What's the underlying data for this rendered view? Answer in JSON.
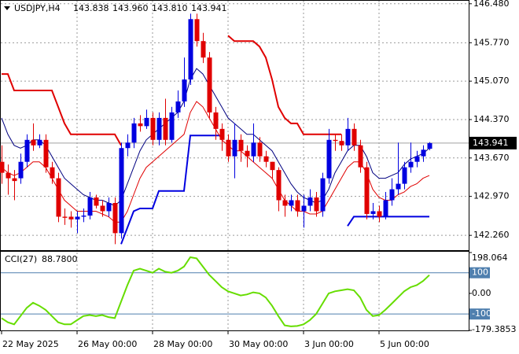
{
  "chart_data": {
    "type": "candlestick",
    "title": "USDJPY,H4",
    "title_values": [
      {
        "value": 143.838,
        "label": "143.838"
      },
      {
        "value": 143.96,
        "label": "143.960"
      },
      {
        "value": 143.81,
        "label": "143.810"
      },
      {
        "value": 143.941,
        "label": "143.941"
      }
    ],
    "up_color": "#0000e0",
    "down_color": "#e00000",
    "open": [
      143.6,
      143.4,
      143.3,
      143.3,
      143.6,
      144.0,
      143.9,
      144.0,
      143.5,
      143.3,
      142.6,
      142.6,
      142.55,
      142.6,
      142.62,
      142.95,
      142.8,
      142.7,
      142.85,
      142.3,
      143.85,
      143.95,
      144.3,
      144.25,
      144.4,
      144.0,
      144.4,
      144.0,
      144.5,
      144.7,
      145.1,
      146.2,
      145.8,
      145.5,
      144.5,
      144.2,
      144.0,
      143.7,
      144.0,
      143.8,
      143.7,
      143.95,
      143.7,
      143.6,
      143.45,
      142.9,
      142.8,
      142.9,
      142.7,
      142.8,
      142.95,
      142.7,
      143.3,
      144.0,
      143.98,
      143.9,
      144.2,
      143.9,
      143.5,
      142.65,
      142.7,
      142.6,
      142.9,
      143.1,
      143.2,
      143.5,
      143.6,
      143.7,
      143.838
    ],
    "high": [
      143.9,
      143.55,
      143.45,
      143.75,
      144.1,
      144.3,
      144.1,
      144.1,
      143.6,
      143.4,
      142.75,
      142.7,
      142.7,
      142.75,
      143.05,
      143.0,
      142.9,
      142.95,
      142.95,
      143.95,
      144.1,
      144.4,
      144.45,
      144.55,
      144.5,
      144.5,
      144.75,
      144.6,
      144.9,
      145.5,
      146.3,
      146.3,
      145.95,
      145.6,
      144.6,
      144.3,
      144.1,
      144.3,
      144.1,
      143.9,
      144.3,
      144.05,
      143.8,
      143.6,
      143.5,
      143.0,
      143.0,
      143.0,
      143.0,
      143.1,
      143.05,
      143.4,
      144.2,
      144.1,
      144.1,
      144.4,
      144.3,
      144.0,
      143.6,
      142.85,
      142.8,
      143.05,
      143.3,
      143.95,
      143.6,
      143.95,
      143.8,
      143.9,
      143.96
    ],
    "low": [
      143.2,
      143.0,
      142.9,
      143.2,
      143.5,
      143.8,
      143.85,
      143.4,
      143.2,
      142.5,
      142.45,
      142.4,
      142.3,
      142.5,
      142.55,
      142.75,
      142.6,
      142.6,
      142.1,
      142.2,
      143.7,
      143.85,
      144.15,
      144.2,
      143.9,
      143.9,
      143.9,
      143.95,
      144.4,
      144.6,
      145.0,
      145.7,
      145.4,
      144.4,
      144.0,
      143.8,
      143.6,
      143.3,
      143.6,
      143.5,
      143.6,
      143.6,
      143.5,
      143.3,
      142.7,
      142.6,
      142.7,
      142.6,
      142.4,
      142.7,
      142.6,
      142.6,
      143.2,
      143.8,
      143.8,
      143.8,
      143.8,
      143.4,
      142.55,
      142.55,
      142.5,
      142.55,
      142.8,
      143.0,
      143.1,
      143.4,
      143.5,
      143.6,
      143.81
    ],
    "close": [
      143.4,
      143.3,
      143.25,
      143.6,
      144.0,
      143.9,
      144.0,
      143.5,
      143.3,
      142.6,
      142.58,
      142.55,
      142.6,
      142.62,
      142.95,
      142.8,
      142.7,
      142.85,
      142.3,
      143.85,
      143.95,
      144.3,
      144.25,
      144.4,
      144.0,
      144.4,
      144.0,
      144.5,
      144.7,
      145.1,
      146.2,
      145.8,
      145.5,
      144.5,
      144.2,
      144.0,
      143.7,
      144.0,
      143.8,
      143.7,
      143.95,
      143.7,
      143.6,
      143.45,
      142.9,
      142.8,
      142.9,
      142.7,
      142.8,
      142.95,
      142.7,
      143.3,
      144.0,
      143.98,
      143.9,
      144.2,
      143.9,
      143.5,
      142.65,
      142.7,
      142.6,
      142.9,
      143.1,
      143.2,
      143.5,
      143.6,
      143.7,
      143.82,
      143.941
    ],
    "lines": [
      {
        "color": "#e00000",
        "width": 2,
        "values": [
          145.2,
          145.2,
          144.9,
          144.9,
          144.9,
          144.9,
          144.9,
          144.9,
          144.9,
          144.6,
          144.3,
          144.1,
          144.1,
          144.1,
          144.1,
          144.1,
          144.1,
          144.1,
          144.1,
          143.9,
          null,
          null,
          null,
          null,
          null,
          null,
          null,
          null,
          null,
          null,
          null,
          null,
          null,
          null,
          null,
          null,
          145.9,
          145.8,
          145.8,
          145.8,
          145.8,
          145.7,
          145.5,
          145.1,
          144.6,
          144.4,
          144.3,
          144.3,
          144.1,
          144.1,
          144.1,
          144.1,
          144.1,
          144.1,
          144.1,
          null,
          null,
          null,
          null,
          null,
          null,
          null,
          null,
          null,
          null,
          null,
          null,
          null,
          null
        ]
      },
      {
        "color": "#0000e0",
        "width": 2,
        "values": [
          null,
          null,
          null,
          null,
          null,
          null,
          null,
          null,
          null,
          null,
          null,
          null,
          null,
          null,
          null,
          null,
          null,
          null,
          null,
          142.1,
          142.4,
          142.7,
          142.75,
          142.75,
          142.75,
          143.07,
          143.07,
          143.07,
          143.07,
          143.07,
          144.08,
          144.08,
          144.08,
          144.08,
          144.08,
          144.08,
          null,
          null,
          null,
          null,
          null,
          null,
          null,
          null,
          null,
          null,
          null,
          null,
          null,
          null,
          null,
          null,
          null,
          null,
          null,
          142.43,
          142.6,
          142.6,
          142.6,
          142.6,
          142.6,
          142.6,
          142.6,
          142.6,
          142.6,
          142.6,
          142.6,
          142.6,
          142.6
        ]
      },
      {
        "color": "#000080",
        "width": 1,
        "values": [
          144.4,
          144.1,
          143.9,
          143.85,
          143.9,
          144.0,
          144.0,
          143.9,
          143.7,
          143.5,
          143.3,
          143.2,
          143.1,
          143.0,
          142.95,
          142.9,
          142.9,
          142.85,
          142.8,
          142.9,
          143.2,
          143.5,
          143.8,
          144.0,
          144.1,
          144.2,
          144.3,
          144.4,
          144.5,
          144.7,
          145.1,
          145.3,
          145.2,
          145.0,
          144.8,
          144.6,
          144.4,
          144.3,
          144.2,
          144.1,
          144.1,
          144.0,
          143.9,
          143.8,
          143.6,
          143.4,
          143.2,
          143.05,
          142.95,
          142.9,
          142.85,
          142.9,
          143.1,
          143.4,
          143.6,
          143.8,
          143.9,
          143.9,
          143.7,
          143.4,
          143.3,
          143.3,
          143.35,
          143.4,
          143.55,
          143.65,
          143.7,
          143.75,
          143.85
        ]
      },
      {
        "color": "#e00000",
        "width": 1,
        "values": [
          143.5,
          143.4,
          143.35,
          143.4,
          143.5,
          143.6,
          143.6,
          143.5,
          143.3,
          143.1,
          142.9,
          142.8,
          142.7,
          142.7,
          142.7,
          142.7,
          142.65,
          142.6,
          142.5,
          142.5,
          142.7,
          143.0,
          143.3,
          143.5,
          143.6,
          143.7,
          143.8,
          143.9,
          144.0,
          144.1,
          144.5,
          144.7,
          144.6,
          144.4,
          144.2,
          144.0,
          143.9,
          143.8,
          143.8,
          143.7,
          143.6,
          143.5,
          143.4,
          143.3,
          143.1,
          142.9,
          142.8,
          142.7,
          142.7,
          142.65,
          142.65,
          142.7,
          142.9,
          143.1,
          143.3,
          143.5,
          143.6,
          143.6,
          143.4,
          143.1,
          142.95,
          142.9,
          142.9,
          143.0,
          143.05,
          143.15,
          143.2,
          143.3,
          143.35
        ]
      }
    ],
    "last_price": 143.941,
    "ylim": [
      141.99,
      146.52
    ],
    "yticks": [
      {
        "value": 146.48,
        "label": "146.480"
      },
      {
        "value": 145.77,
        "label": "145.770"
      },
      {
        "value": 145.07,
        "label": "145.070"
      },
      {
        "value": 144.37,
        "label": "144.370"
      },
      {
        "value": 143.67,
        "label": "143.670"
      },
      {
        "value": 142.97,
        "label": "142.970"
      },
      {
        "value": 142.26,
        "label": "142.260"
      }
    ],
    "xticks": [
      {
        "value": 0,
        "label": "22 May 2025"
      },
      {
        "value": 12,
        "label": "26 May 00:00"
      },
      {
        "value": 24,
        "label": "28 May 00:00"
      },
      {
        "value": 36,
        "label": "30 May 00:00"
      },
      {
        "value": 48,
        "label": "3 Jun 00:00"
      },
      {
        "value": 60,
        "label": "5 Jun 00:00"
      }
    ],
    "grid": true,
    "indicator": {
      "name": "CCI(27)",
      "current": {
        "value": 88.78,
        "label": "88.7800"
      },
      "color": "#66dd00",
      "axis": "y2",
      "values": [
        -120,
        -140,
        -150,
        -110,
        -70,
        -45,
        -60,
        -80,
        -110,
        -140,
        -150,
        -150,
        -130,
        -110,
        -105,
        -110,
        -105,
        -115,
        -120,
        -40,
        40,
        110,
        120,
        110,
        100,
        120,
        105,
        100,
        110,
        130,
        175,
        170,
        130,
        90,
        60,
        30,
        10,
        0,
        -10,
        -5,
        5,
        0,
        -20,
        -60,
        -110,
        -155,
        -160,
        -158,
        -150,
        -130,
        -100,
        -50,
        0,
        10,
        15,
        20,
        15,
        -20,
        -80,
        -110,
        -105,
        -80,
        -50,
        -20,
        10,
        30,
        40,
        60,
        88.78
      ],
      "levels": [
        100,
        -100
      ],
      "level_color": "#4f7fae"
    },
    "y2lim": [
      -179.3853,
      198.064
    ],
    "y2ticks": [
      198.064,
      100,
      {
        "value": 0,
        "label": "0.00"
      },
      -100,
      -179.3853
    ]
  }
}
